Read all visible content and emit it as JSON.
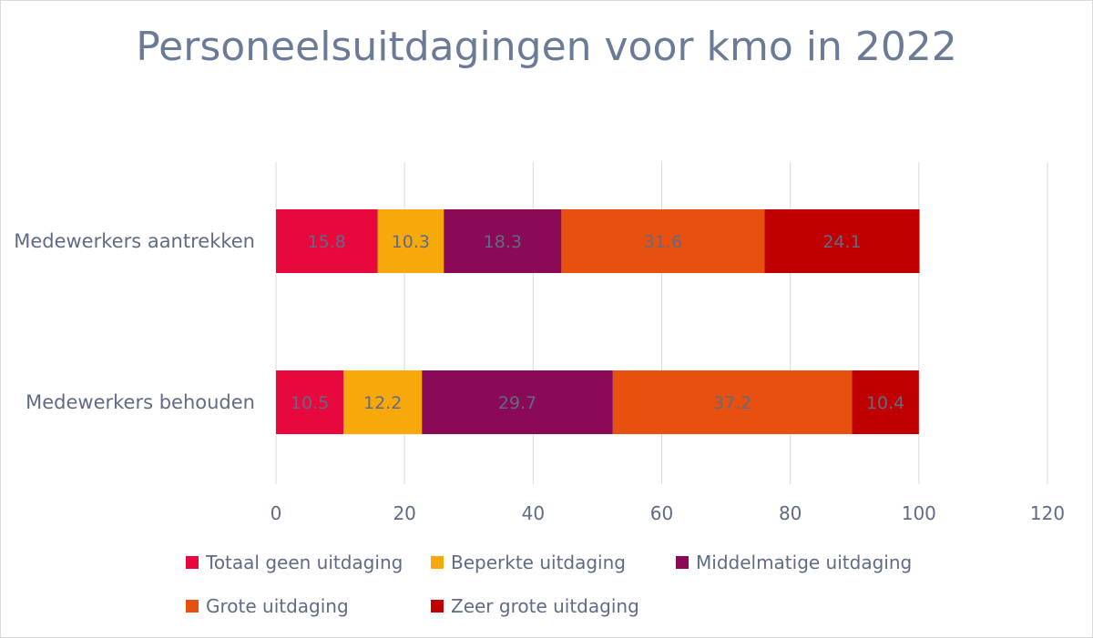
{
  "chart_data": {
    "type": "bar",
    "orientation": "horizontal",
    "stacked": true,
    "title": "Personeelsuitdagingen voor kmo in 2022",
    "categories": [
      "Medewerkers aantrekken",
      "Medewerkers behouden"
    ],
    "series": [
      {
        "name": "Totaal geen uitdaging",
        "color": "#e8083e",
        "values": [
          15.8,
          10.5
        ]
      },
      {
        "name": "Beperkte uitdaging",
        "color": "#f7a90b",
        "values": [
          10.3,
          12.2
        ]
      },
      {
        "name": "Middelmatige uitdaging",
        "color": "#8a0a55",
        "values": [
          18.3,
          29.7
        ]
      },
      {
        "name": "Grote uitdaging",
        "color": "#e8500f",
        "values": [
          31.6,
          37.2
        ]
      },
      {
        "name": "Zeer grote uitdaging",
        "color": "#c00000",
        "values": [
          24.1,
          10.4
        ]
      }
    ],
    "xlim": [
      0,
      120
    ],
    "xticks": [
      "0",
      "20",
      "40",
      "60",
      "80",
      "100",
      "120"
    ],
    "gridlines": "vertical",
    "legend_position": "bottom"
  }
}
